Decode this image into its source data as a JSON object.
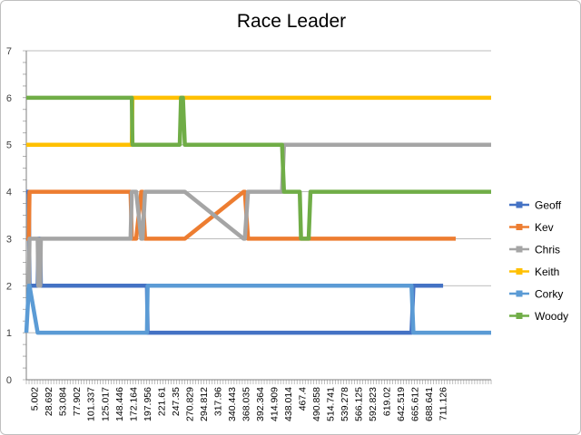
{
  "chart_data": {
    "type": "line",
    "title": "Race Leader",
    "xlabel": "",
    "ylabel": "",
    "ylim": [
      0,
      7
    ],
    "yticks": [
      "0",
      "1",
      "2",
      "3",
      "4",
      "5",
      "6",
      "7"
    ],
    "grid": true,
    "legend_position": "right",
    "x_tick_labels": [
      "5.002",
      "28.692",
      "53.084",
      "77.902",
      "101.337",
      "125.017",
      "148.446",
      "172.164",
      "197.956",
      "221.61",
      "247.35",
      "270.829",
      "294.812",
      "317.96",
      "340.443",
      "368.035",
      "392.364",
      "414.909",
      "438.014",
      "467.4",
      "490.858",
      "514.741",
      "539.278",
      "566.125",
      "592.823",
      "619.02",
      "642.519",
      "665.612",
      "688.641",
      "711.126"
    ],
    "x": [
      5.002,
      9,
      10,
      23,
      24,
      27,
      28,
      170,
      172,
      173,
      176,
      179,
      187,
      189,
      193,
      196,
      197,
      248,
      250,
      253,
      256,
      349,
      351,
      356,
      359,
      410,
      413,
      416,
      438,
      440,
      452,
      455,
      615,
      618,
      665,
      685,
      700,
      741
    ],
    "series": [
      {
        "name": "Geoff",
        "color": "#4472C4",
        "values": [
          4,
          4,
          2,
          2,
          3,
          3,
          2,
          2,
          2,
          2,
          2,
          2,
          2,
          2,
          2,
          2,
          1,
          1,
          1,
          1,
          1,
          1,
          1,
          1,
          1,
          1,
          1,
          1,
          1,
          1,
          1,
          1,
          1,
          2,
          2,
          null,
          null,
          null
        ]
      },
      {
        "name": "Kev",
        "color": "#ED7D31",
        "values": [
          3,
          3,
          4,
          4,
          4,
          4,
          4,
          4,
          3,
          3,
          3,
          3,
          4,
          4,
          3,
          3,
          3,
          3,
          3,
          3,
          3,
          4,
          4,
          3,
          3,
          3,
          3,
          3,
          3,
          3,
          3,
          3,
          3,
          3,
          3,
          3,
          null,
          null
        ]
      },
      {
        "name": "Chris",
        "color": "#A5A5A5",
        "values": [
          2,
          2,
          3,
          3,
          2,
          2,
          3,
          3,
          4,
          4,
          4,
          4,
          3,
          3,
          4,
          4,
          4,
          4,
          4,
          4,
          4,
          3,
          3,
          4,
          4,
          4,
          5,
          5,
          5,
          5,
          5,
          5,
          5,
          5,
          5,
          5,
          5,
          5
        ]
      },
      {
        "name": "Keith",
        "color": "#FFC000",
        "values": [
          5,
          5,
          5,
          5,
          5,
          5,
          5,
          5,
          5,
          6,
          6,
          6,
          6,
          6,
          6,
          6,
          6,
          6,
          6,
          6,
          6,
          6,
          6,
          6,
          6,
          6,
          6,
          6,
          6,
          6,
          6,
          6,
          6,
          6,
          6,
          6,
          6,
          6
        ]
      },
      {
        "name": "Corky",
        "color": "#5B9BD5",
        "values": [
          1,
          2,
          2,
          1,
          1,
          1,
          1,
          1,
          1,
          1,
          1,
          1,
          1,
          1,
          1,
          1,
          2,
          2,
          2,
          2,
          2,
          2,
          2,
          2,
          2,
          2,
          2,
          2,
          2,
          2,
          2,
          2,
          2,
          1,
          1,
          1,
          1,
          1
        ]
      },
      {
        "name": "Woody",
        "color": "#70AD47",
        "values": [
          6,
          6,
          6,
          6,
          6,
          6,
          6,
          6,
          6,
          5,
          5,
          5,
          5,
          5,
          5,
          5,
          5,
          5,
          6,
          6,
          5,
          5,
          5,
          5,
          5,
          5,
          4,
          4,
          4,
          3,
          3,
          4,
          4,
          4,
          4,
          4,
          4,
          4
        ]
      }
    ]
  }
}
